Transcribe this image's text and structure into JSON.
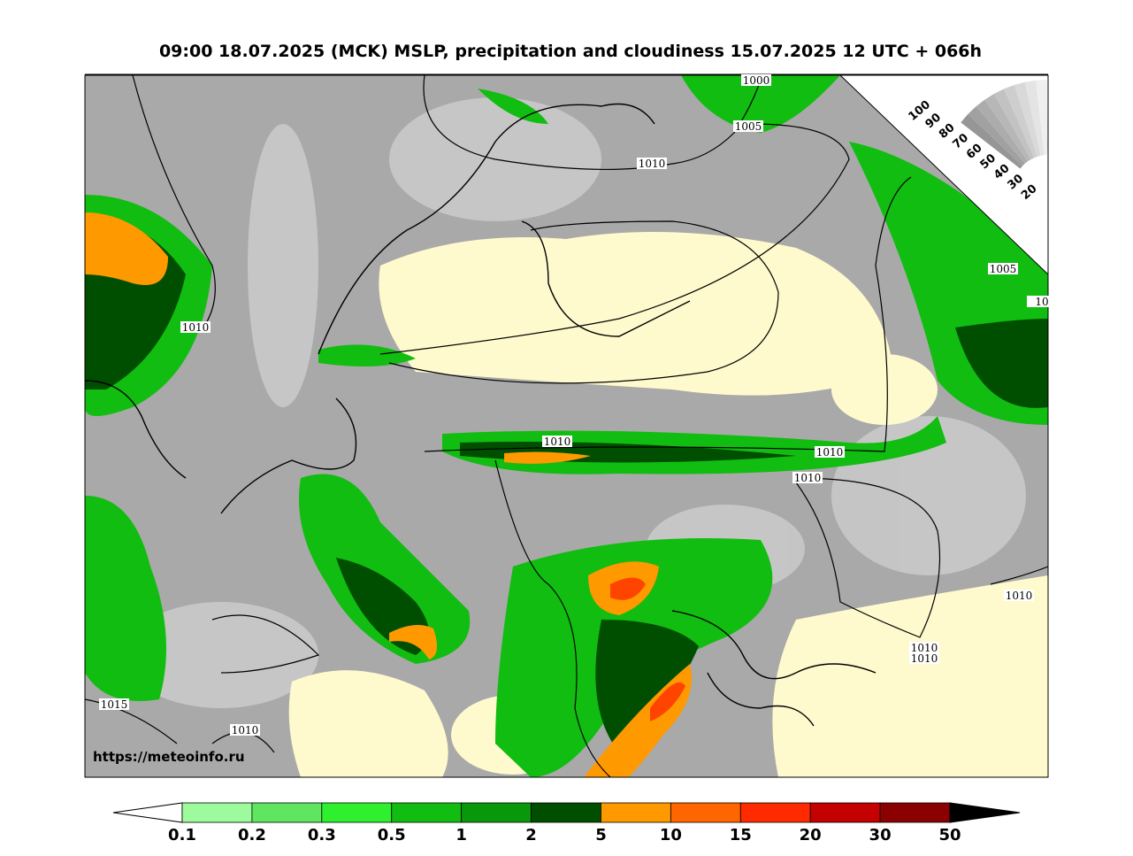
{
  "title": "09:00 18.07.2025 (MCK) MSLP, precipitation and cloudiness 15.07.2025 12 UTC + 066h",
  "isobar_labels": [
    "1000",
    "1005",
    "1010",
    "1005",
    "10",
    "1010",
    "1010",
    "1010",
    "1010",
    "1010",
    "1010",
    "1010",
    "1015",
    "1010"
  ],
  "cloud_scale": {
    "labels": [
      "100",
      "90",
      "80",
      "70",
      "60",
      "50",
      "40",
      "30",
      "20"
    ]
  },
  "credit": "https://meteoinfo.ru",
  "colorbar": {
    "labels": [
      "0.1",
      "0.2",
      "0.3",
      "0.5",
      "1",
      "2",
      "5",
      "10",
      "15",
      "20",
      "30",
      "50"
    ],
    "colors": [
      "#9dfa9d",
      "#5fe55f",
      "#2ef02e",
      "#10bd10",
      "#08980a",
      "#004e00",
      "#ff9900",
      "#ff6600",
      "#ff2a00",
      "#c40000",
      "#8b0000"
    ]
  }
}
